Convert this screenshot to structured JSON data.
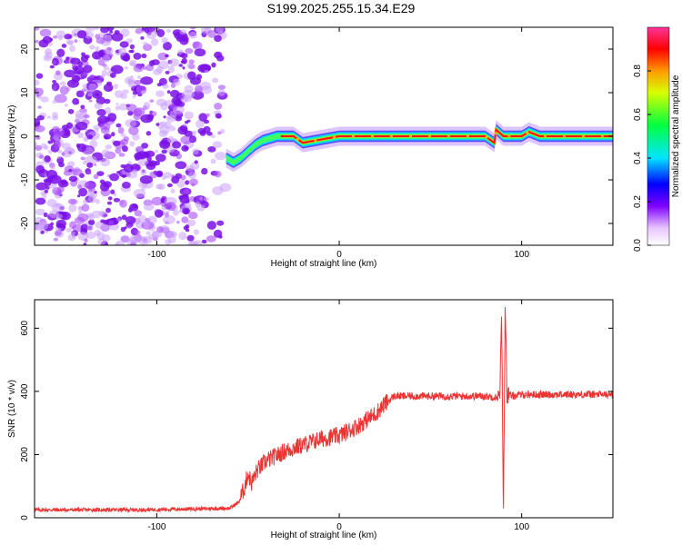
{
  "title": "S199.2025.255.15.34.E29",
  "chart_data": [
    {
      "type": "heatmap",
      "xlabel": "Height of straight line (km)",
      "ylabel": "Frequency (Hz)",
      "xlim": [
        -167,
        150
      ],
      "ylim": [
        -25,
        25
      ],
      "xticks": [
        -100,
        0,
        100
      ],
      "yticks": [
        -20,
        -10,
        0,
        10,
        20
      ],
      "noise_region_x": [
        -167,
        -62
      ],
      "signal_track": {
        "x": [
          -62,
          -58,
          -54,
          -50,
          -46,
          -42,
          -38,
          -34,
          -30,
          -25,
          -20,
          0,
          20,
          60,
          80,
          85,
          86,
          90,
          100,
          104,
          110,
          150
        ],
        "frequency": [
          -5,
          -6,
          -5,
          -3.5,
          -2,
          -1,
          -0.5,
          0,
          0,
          0,
          -1.5,
          0,
          0,
          0,
          0,
          -1.5,
          1.5,
          0,
          0,
          1,
          0,
          0
        ]
      },
      "colorbar": {
        "label": "Normalized spectral amplitude",
        "range": [
          0,
          1
        ],
        "ticks": [
          "0.0",
          "0.2",
          "0.4",
          "0.6",
          "0.8"
        ],
        "tick_values": [
          0.0,
          0.2,
          0.4,
          0.6,
          0.8
        ]
      }
    },
    {
      "type": "line",
      "xlabel": "Height of straight line (km)",
      "ylabel": "SNR (10 * v/v)",
      "xlim": [
        -167,
        150
      ],
      "ylim": [
        0,
        690
      ],
      "xticks": [
        -100,
        0,
        100
      ],
      "yticks": [
        0,
        200,
        400,
        600
      ],
      "series": [
        {
          "name": "SNR",
          "color": "#ee3333",
          "x": [
            -167,
            -140,
            -110,
            -80,
            -60,
            -55,
            -52,
            -50,
            -48,
            -45,
            -40,
            -30,
            -20,
            -10,
            0,
            10,
            20,
            25,
            30,
            40,
            60,
            80,
            88,
            89,
            90,
            91,
            92,
            95,
            100,
            120,
            150
          ],
          "y": [
            25,
            25,
            25,
            28,
            30,
            50,
            95,
            140,
            110,
            150,
            180,
            210,
            230,
            250,
            260,
            290,
            330,
            360,
            385,
            385,
            385,
            385,
            380,
            640,
            15,
            690,
            390,
            385,
            390,
            390,
            390
          ]
        }
      ]
    }
  ]
}
